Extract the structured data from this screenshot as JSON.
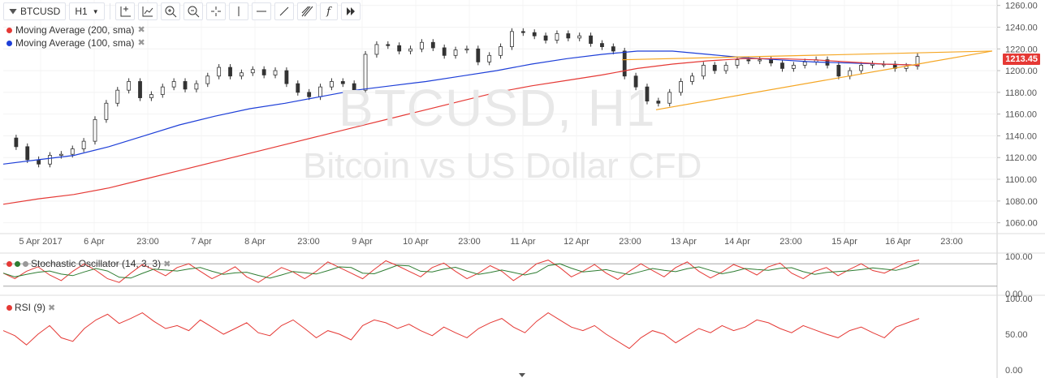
{
  "toolbar": {
    "symbol": "BTCUSD",
    "interval": "H1",
    "icons": [
      "crosshair-plus-icon",
      "compare-chart-icon",
      "zoom-in-icon",
      "zoom-out-icon",
      "cross-cursor-icon",
      "vertical-line-icon",
      "horizontal-line-icon",
      "trend-line-icon",
      "pitchfork-icon",
      "function-icon",
      "fast-forward-icon"
    ]
  },
  "legend": {
    "ma200": {
      "label": "Moving Average (200, sma)",
      "color": "#e53935"
    },
    "ma100": {
      "label": "Moving Average (100, sma)",
      "color": "#1e3fd8"
    }
  },
  "watermark": {
    "line1": "BTCUSD, H1",
    "line2": "Bitcoin vs US Dollar CFD"
  },
  "last_price": "1213.45",
  "indicators": {
    "stochastic": {
      "label": "Stochastic Oscillator (14, 3, 3)",
      "colors": [
        "#e53935",
        "#2e7d32",
        "#999999"
      ]
    },
    "rsi": {
      "label": "RSI (9)",
      "color": "#e53935"
    }
  },
  "chart_data": {
    "type": "line",
    "title": "",
    "main": {
      "y_ticks": [
        "1260.00",
        "1240.00",
        "1220.00",
        "1200.00",
        "1180.00",
        "1160.00",
        "1140.00",
        "1120.00",
        "1100.00",
        "1080.00",
        "1060.00"
      ],
      "ylim": [
        1050,
        1265
      ],
      "x_ticks": [
        "5 Apr 2017",
        "6 Apr",
        "23:00",
        "7 Apr",
        "8 Apr",
        "23:00",
        "9 Apr",
        "10 Apr",
        "23:00",
        "11 Apr",
        "12 Apr",
        "23:00",
        "13 Apr",
        "14 Apr",
        "23:00",
        "15 Apr",
        "16 Apr",
        "23:00"
      ],
      "series": [
        {
          "name": "BTCUSD",
          "values": [
            1138,
            1130,
            1118,
            1114,
            1122,
            1123,
            1128,
            1135,
            1155,
            1170,
            1182,
            1190,
            1175,
            1178,
            1185,
            1190,
            1183,
            1188,
            1195,
            1203,
            1195,
            1198,
            1201,
            1196,
            1200,
            1188,
            1180,
            1176,
            1185,
            1190,
            1188,
            1182,
            1215,
            1224,
            1223,
            1218,
            1220,
            1226,
            1221,
            1214,
            1219,
            1220,
            1208,
            1214,
            1222,
            1236,
            1235,
            1232,
            1228,
            1234,
            1230,
            1232,
            1225,
            1222,
            1218,
            1195,
            1185,
            1172,
            1170,
            1180,
            1190,
            1195,
            1205,
            1200,
            1205,
            1210,
            1209,
            1210,
            1207,
            1202,
            1205,
            1208,
            1210,
            1205,
            1195,
            1200,
            1205,
            1206,
            1206,
            1202,
            1204,
            1213
          ]
        },
        {
          "name": "Moving Average (100, sma)",
          "values": [
            1114,
            1118,
            1122,
            1130,
            1140,
            1150,
            1158,
            1165,
            1170,
            1176,
            1182,
            1186,
            1190,
            1195,
            1200,
            1206,
            1211,
            1215,
            1218,
            1218,
            1215,
            1212,
            1210,
            1208,
            1207,
            1206,
            1205
          ]
        },
        {
          "name": "Moving Average (200, sma)",
          "values": [
            1077,
            1082,
            1086,
            1092,
            1100,
            1108,
            1116,
            1124,
            1132,
            1140,
            1148,
            1156,
            1164,
            1172,
            1180,
            1186,
            1191,
            1196,
            1202,
            1206,
            1209,
            1211,
            1211,
            1210,
            1208,
            1206,
            1205
          ]
        }
      ],
      "trendlines": [
        {
          "from": [
            "12 Apr 23:00",
            1210
          ],
          "to": [
            "17 Apr",
            1218
          ]
        },
        {
          "from": [
            "13 Apr",
            1164
          ],
          "to": [
            "17 Apr",
            1218
          ]
        }
      ]
    },
    "stochastic": {
      "y_ticks": [
        "100.00",
        "0.00"
      ],
      "ylim": [
        0,
        100
      ],
      "k": [
        55,
        40,
        60,
        72,
        50,
        35,
        60,
        80,
        62,
        40,
        30,
        55,
        78,
        64,
        48,
        70,
        80,
        60,
        40,
        55,
        72,
        45,
        30,
        50,
        70,
        58,
        40,
        60,
        85,
        70,
        55,
        40,
        65,
        88,
        75,
        60,
        45,
        70,
        82,
        60,
        40,
        55,
        75,
        60,
        35,
        55,
        80,
        90,
        70,
        45,
        60,
        78,
        55,
        38,
        60,
        80,
        62,
        45,
        70,
        85,
        60,
        42,
        58,
        78,
        66,
        50,
        72,
        82,
        55,
        40,
        60,
        70,
        48,
        65,
        80,
        62,
        55,
        70,
        85,
        90
      ]
    },
    "rsi": {
      "y_ticks": [
        "100.00",
        "50.00",
        "0.00"
      ],
      "ylim": [
        0,
        100
      ],
      "values": [
        55,
        48,
        35,
        50,
        62,
        45,
        40,
        58,
        70,
        78,
        65,
        72,
        80,
        68,
        58,
        62,
        55,
        70,
        60,
        50,
        58,
        66,
        52,
        48,
        62,
        70,
        58,
        45,
        55,
        50,
        42,
        62,
        70,
        66,
        58,
        64,
        55,
        48,
        60,
        52,
        45,
        58,
        66,
        72,
        60,
        52,
        68,
        80,
        70,
        60,
        55,
        62,
        50,
        40,
        30,
        45,
        55,
        50,
        38,
        48,
        58,
        52,
        62,
        55,
        60,
        70,
        66,
        58,
        52,
        62,
        56,
        50,
        45,
        55,
        60,
        52,
        45,
        60,
        66,
        72
      ]
    }
  }
}
